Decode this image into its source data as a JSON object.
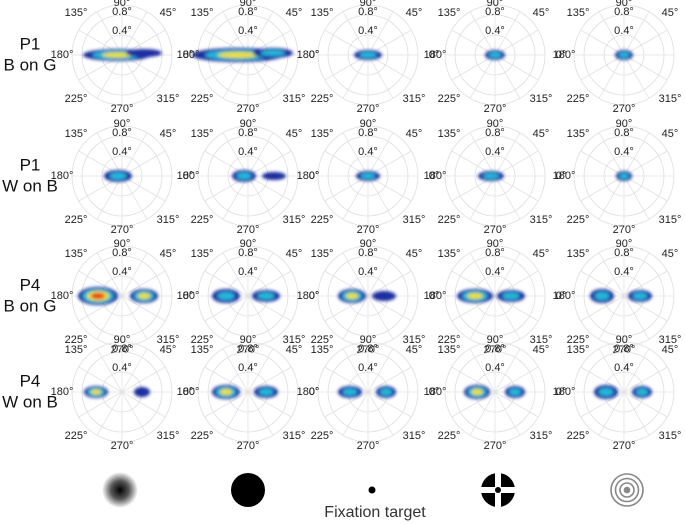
{
  "row_labels": [
    [
      "P1",
      "B on G"
    ],
    [
      "P1",
      "W on B"
    ],
    [
      "P4",
      "B on G"
    ],
    [
      "P4",
      "W on B"
    ]
  ],
  "angle_labels": [
    "0°",
    "45°",
    "90°",
    "135°",
    "180°",
    "225°",
    "270°",
    "315°"
  ],
  "radius_labels": [
    "0.4°",
    "0.8°"
  ],
  "xlabel": "Fixation target"
}
